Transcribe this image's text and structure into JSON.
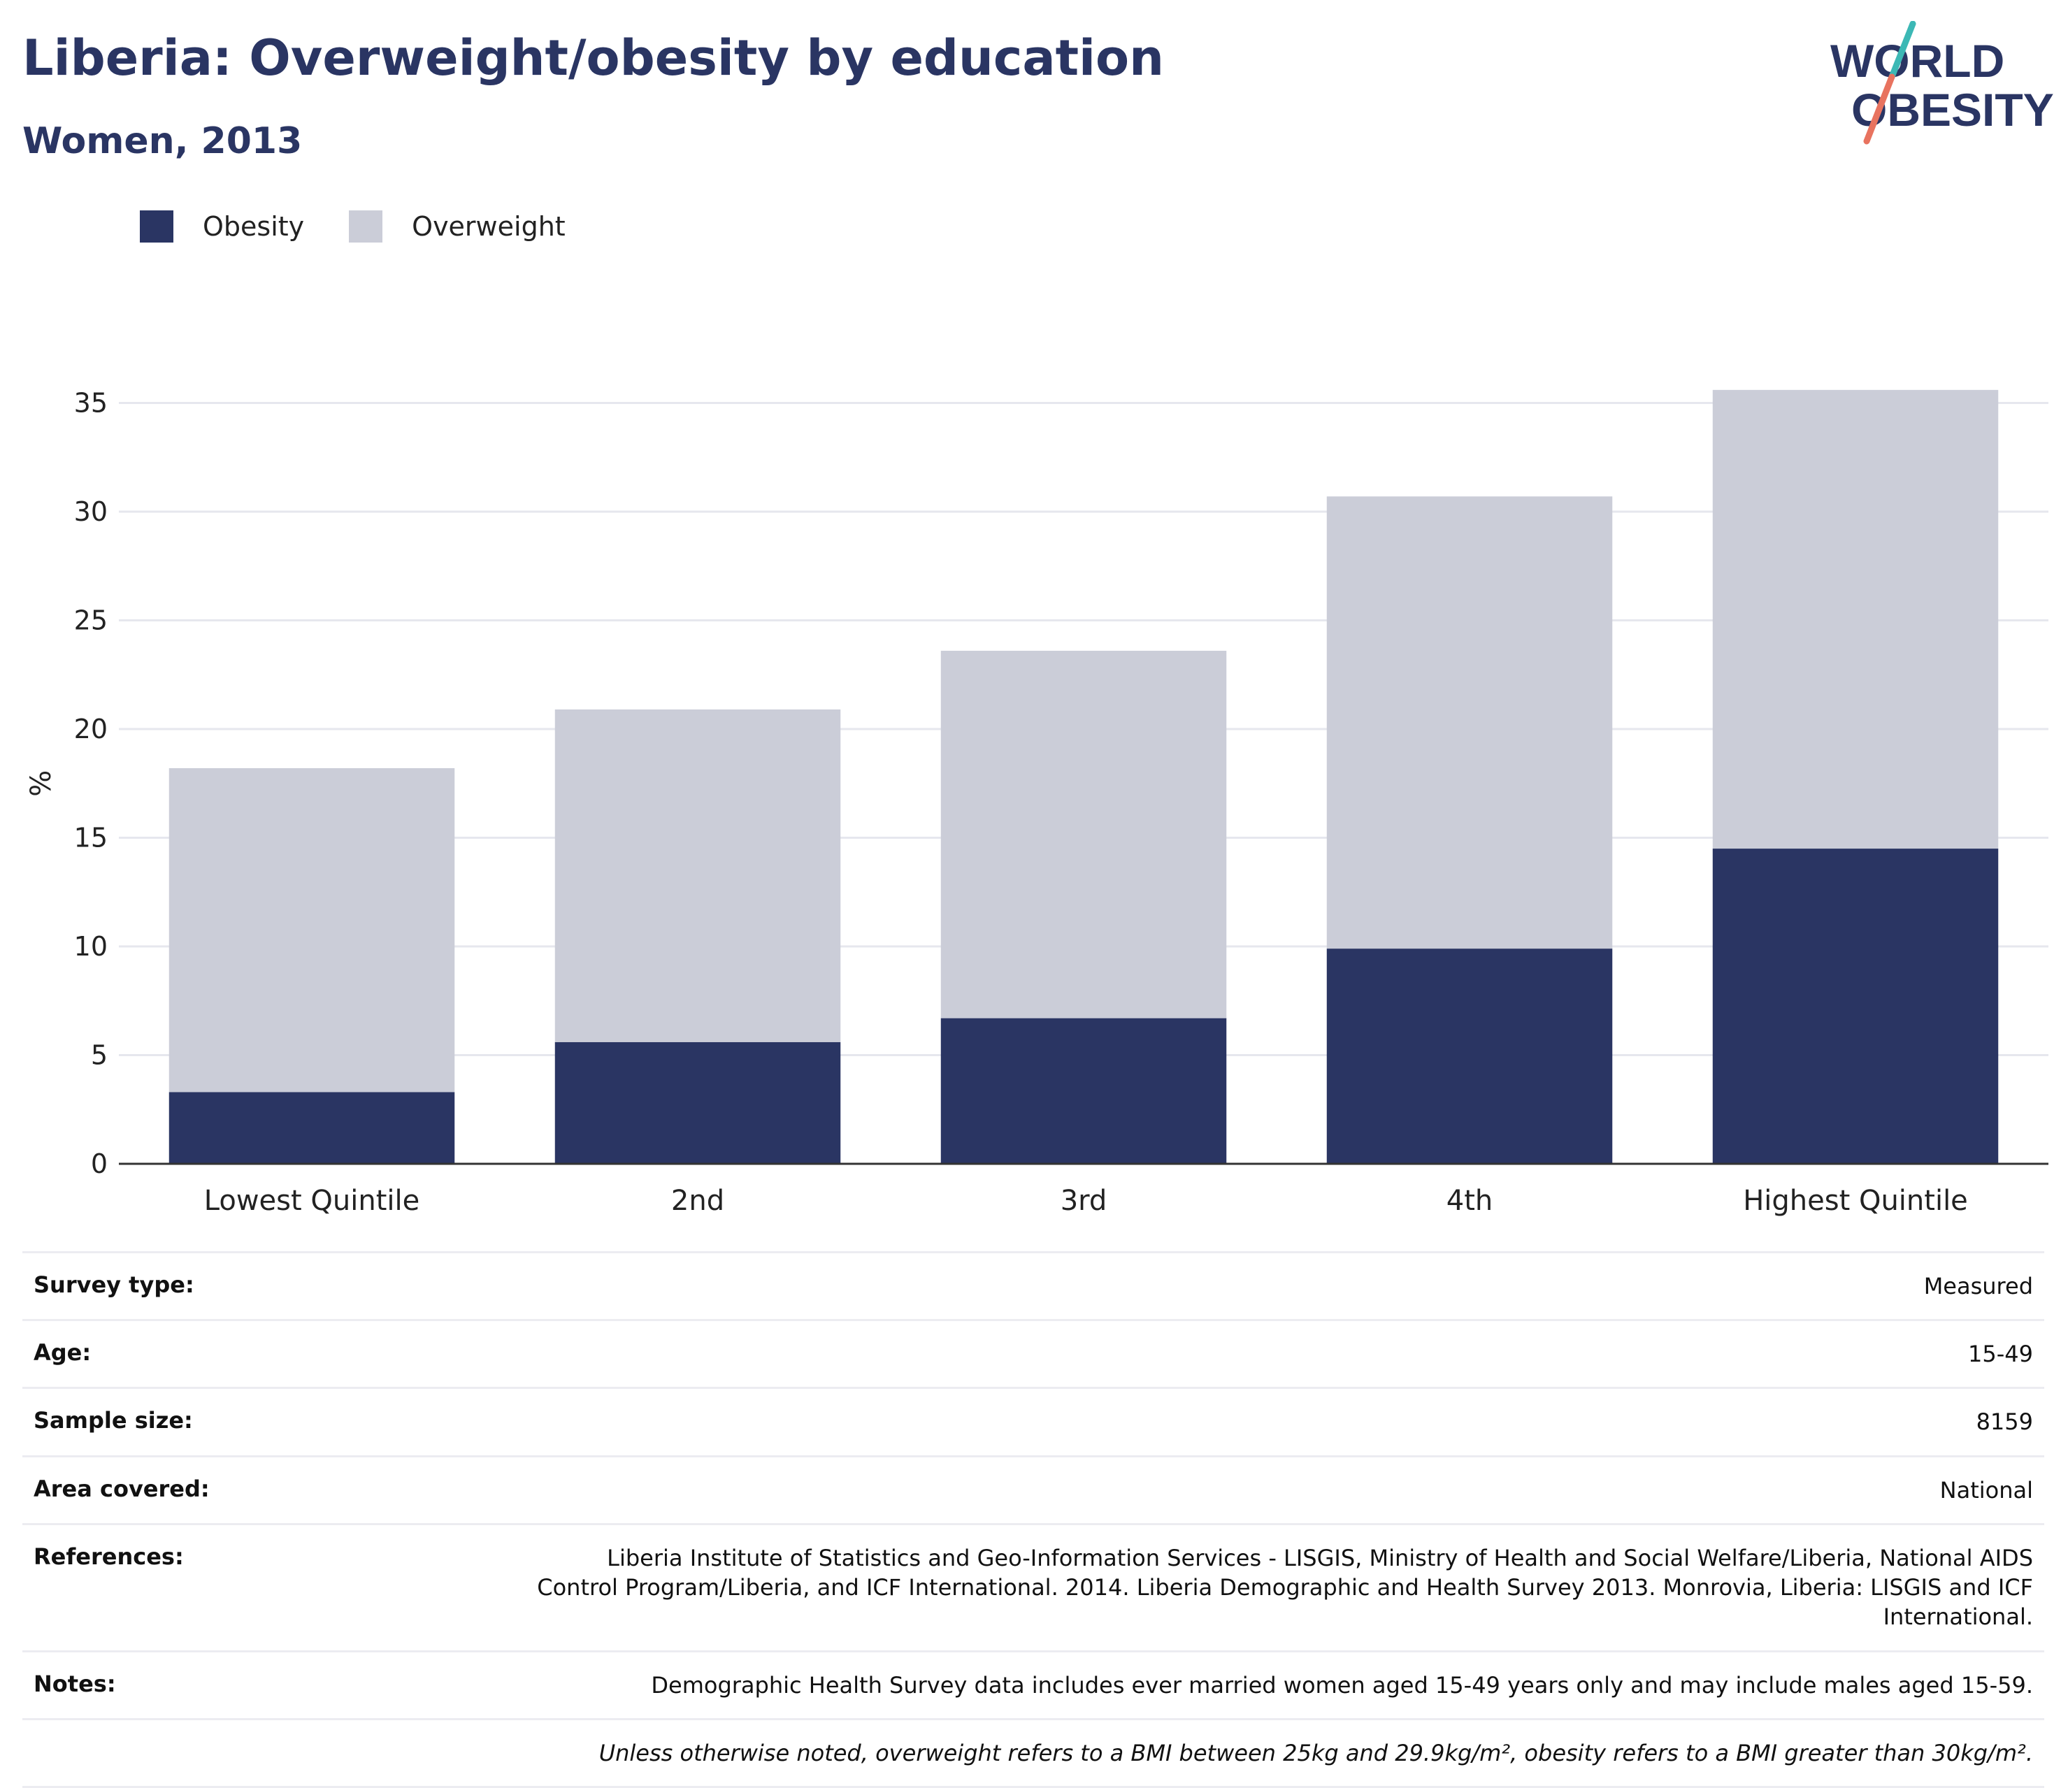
{
  "header": {
    "title": "Liberia: Overweight/obesity by education",
    "subtitle": "Women, 2013"
  },
  "logo": {
    "line1": "WORLD",
    "line2": "OBESITY",
    "icon": "world-obesity-logo"
  },
  "colors": {
    "obesity": "#2a3563",
    "overweight": "#cbcdd8",
    "title": "#2a3563",
    "grid": "#e6e7ee",
    "axis": "#333333"
  },
  "chart_data": {
    "type": "bar",
    "stacked": true,
    "categories": [
      "Lowest Quintile",
      "2nd",
      "3rd",
      "4th",
      "Highest Quintile"
    ],
    "series": [
      {
        "name": "Obesity",
        "values": [
          3.3,
          5.6,
          6.7,
          9.9,
          14.5
        ]
      },
      {
        "name": "Overweight",
        "values": [
          14.9,
          15.3,
          16.9,
          20.8,
          21.1
        ]
      }
    ],
    "totals": [
      18.2,
      20.9,
      23.6,
      30.7,
      35.6
    ],
    "ylabel": "%",
    "ylim": [
      0,
      35
    ],
    "yticks": [
      0,
      5,
      10,
      15,
      20,
      25,
      30,
      35
    ],
    "grid": true,
    "legend_position": "top-left"
  },
  "info": {
    "rows": [
      {
        "key": "Survey type:",
        "value": "Measured"
      },
      {
        "key": "Age:",
        "value": "15-49"
      },
      {
        "key": "Sample size:",
        "value": "8159"
      },
      {
        "key": "Area covered:",
        "value": "National"
      },
      {
        "key": "References:",
        "value": "Liberia Institute of Statistics and Geo-Information Services - LISGIS, Ministry of Health and Social Welfare/Liberia, National AIDS Control Program/Liberia, and ICF International. 2014. Liberia Demographic and Health Survey 2013. Monrovia, Liberia: LISGIS and ICF International."
      },
      {
        "key": "Notes:",
        "value": "Demographic Health Survey data includes ever married women aged 15-49 years only and may include males aged 15-59."
      }
    ],
    "footnote": "Unless otherwise noted, overweight refers to a BMI between 25kg and 29.9kg/m², obesity refers to a BMI greater than 30kg/m²."
  }
}
